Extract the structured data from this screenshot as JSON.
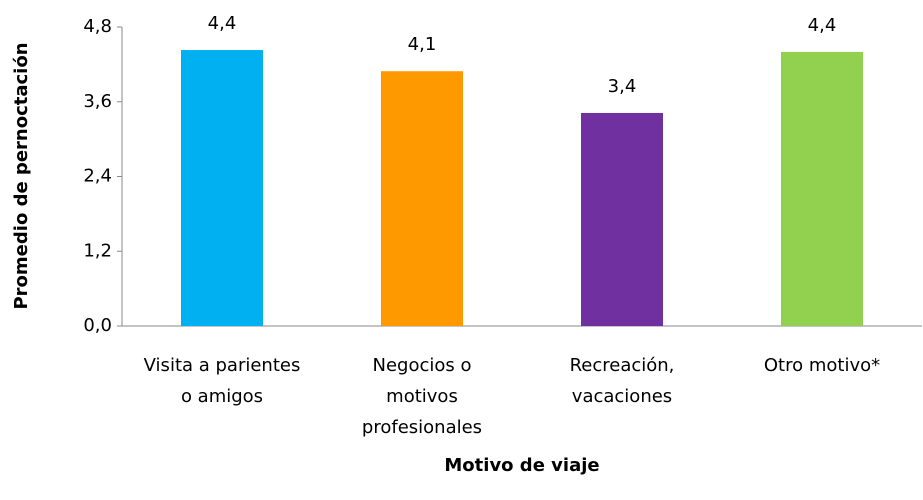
{
  "chart_data": {
    "type": "bar",
    "categories": [
      [
        "Visita a parientes",
        "o amigos"
      ],
      [
        "Negocios o",
        "motivos",
        "profesionales"
      ],
      [
        "Recreación,",
        "vacaciones"
      ],
      [
        "Otro motivo*"
      ]
    ],
    "values": [
      4.43,
      4.09,
      3.42,
      4.4
    ],
    "value_labels": [
      "4,4",
      "4,1",
      "3,4",
      "4,4"
    ],
    "colors": [
      "#00b0f0",
      "#ff9900",
      "#7030a0",
      "#92d050"
    ],
    "ylim": [
      0,
      4.8
    ],
    "yticks": [
      {
        "value": 0,
        "label": "0,0"
      },
      {
        "value": 1.2,
        "label": "1,2"
      },
      {
        "value": 2.4,
        "label": "2,4"
      },
      {
        "value": 3.6,
        "label": "3,6"
      },
      {
        "value": 4.8,
        "label": "4,8"
      }
    ],
    "xlabel": "Motivo de viaje",
    "ylabel": "Promedio de pernoctación",
    "grid": false
  }
}
